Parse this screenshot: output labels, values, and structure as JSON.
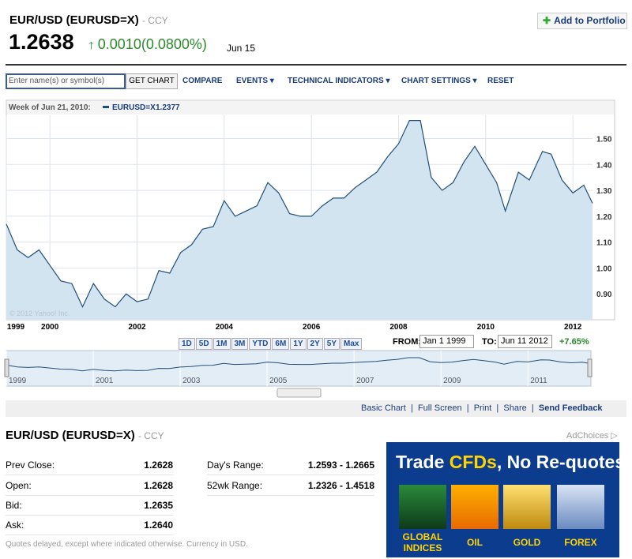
{
  "header": {
    "title": "EUR/USD (EURUSD=X)",
    "exchange": "- CCY",
    "price": "1.2638",
    "change": "0.0010(0.0800%)",
    "date": "Jun 15",
    "portfolio_button": "Add to Portfolio"
  },
  "toolbar": {
    "placeholder": "Enter name(s) or symbol(s)",
    "get_chart": "GET CHART",
    "links": [
      "COMPARE",
      "EVENTS",
      "TECHNICAL INDICATORS",
      "CHART SETTINGS",
      "RESET"
    ]
  },
  "chart_data": {
    "type": "line",
    "legend_label": "Week of Jun 21, 2010:",
    "series": [
      {
        "name": "EURUSD=X",
        "legend_value": "1.2377",
        "color": "#1f4e79",
        "x": [
          1999,
          1999.25,
          1999.5,
          1999.75,
          2000,
          2000.25,
          2000.5,
          2000.75,
          2001,
          2001.25,
          2001.5,
          2001.75,
          2002,
          2002.25,
          2002.5,
          2002.75,
          2003,
          2003.25,
          2003.5,
          2003.75,
          2004,
          2004.25,
          2004.5,
          2004.75,
          2005,
          2005.25,
          2005.5,
          2005.75,
          2006,
          2006.25,
          2006.5,
          2006.75,
          2007,
          2007.25,
          2007.5,
          2007.75,
          2008,
          2008.25,
          2008.5,
          2008.75,
          2009,
          2009.25,
          2009.5,
          2009.75,
          2010,
          2010.25,
          2010.45,
          2010.75,
          2011,
          2011.3,
          2011.5,
          2011.75,
          2012,
          2012.25,
          2012.45
        ],
        "values": [
          1.17,
          1.07,
          1.04,
          1.07,
          1.01,
          0.95,
          0.94,
          0.85,
          0.94,
          0.88,
          0.85,
          0.9,
          0.87,
          0.88,
          0.99,
          0.98,
          1.06,
          1.09,
          1.15,
          1.16,
          1.26,
          1.2,
          1.22,
          1.24,
          1.33,
          1.29,
          1.21,
          1.2,
          1.2,
          1.24,
          1.27,
          1.27,
          1.31,
          1.34,
          1.37,
          1.43,
          1.48,
          1.57,
          1.57,
          1.35,
          1.3,
          1.33,
          1.41,
          1.47,
          1.4,
          1.33,
          1.22,
          1.37,
          1.34,
          1.45,
          1.44,
          1.34,
          1.29,
          1.32,
          1.25
        ]
      }
    ],
    "xlim": [
      1999,
      2012.45
    ],
    "xticks": [
      1999,
      2000,
      2002,
      2004,
      2006,
      2008,
      2010,
      2012
    ],
    "ylim": [
      0.8,
      1.59
    ],
    "yticks": [
      {
        "value": 0.9,
        "label": "0.90"
      },
      {
        "value": 1.0,
        "label": "1.00"
      },
      {
        "value": 1.1,
        "label": "1.10"
      },
      {
        "value": 1.2,
        "label": "1.20"
      },
      {
        "value": 1.3,
        "label": "1.30"
      },
      {
        "value": 1.4,
        "label": "1.40"
      },
      {
        "value": 1.5,
        "label": "1.50"
      }
    ],
    "grid": true,
    "copyright": "© 2012 Yahoo! Inc.",
    "navigator_xticks": [
      1999,
      2001,
      2003,
      2005,
      2007,
      2009,
      2011
    ]
  },
  "range_buttons": [
    "1D",
    "5D",
    "1M",
    "3M",
    "YTD",
    "6M",
    "1Y",
    "2Y",
    "5Y",
    "Max"
  ],
  "date_range": {
    "from_label": "FROM:",
    "from": "Jan 1 1999",
    "to_label": "TO:",
    "to": "Jun 11 2012",
    "change": "+7.65%"
  },
  "chart_links": [
    "Basic Chart",
    "Full Screen",
    "Print",
    "Share",
    "Send Feedback"
  ],
  "quote": {
    "title": "EUR/USD (EURUSD=X)",
    "exchange": "- CCY",
    "rows": [
      [
        "Prev Close:",
        "1.2628"
      ],
      [
        "Open:",
        "1.2628"
      ],
      [
        "Bid:",
        "1.2635"
      ],
      [
        "Ask:",
        "1.2640"
      ]
    ],
    "right_rows": [
      [
        "Day's Range:",
        "1.2593 - 1.2665"
      ],
      [
        "52wk Range:",
        "1.2326 - 1.4518"
      ]
    ],
    "note": "Quotes delayed, except where indicated otherwise. Currency in USD."
  },
  "ad": {
    "choices": "AdChoices",
    "headline_1": "Trade ",
    "headline_2": "CFDs",
    "headline_3": ", No Re-quotes",
    "items": [
      "GLOBAL INDICES",
      "OIL",
      "GOLD",
      "FOREX"
    ]
  }
}
